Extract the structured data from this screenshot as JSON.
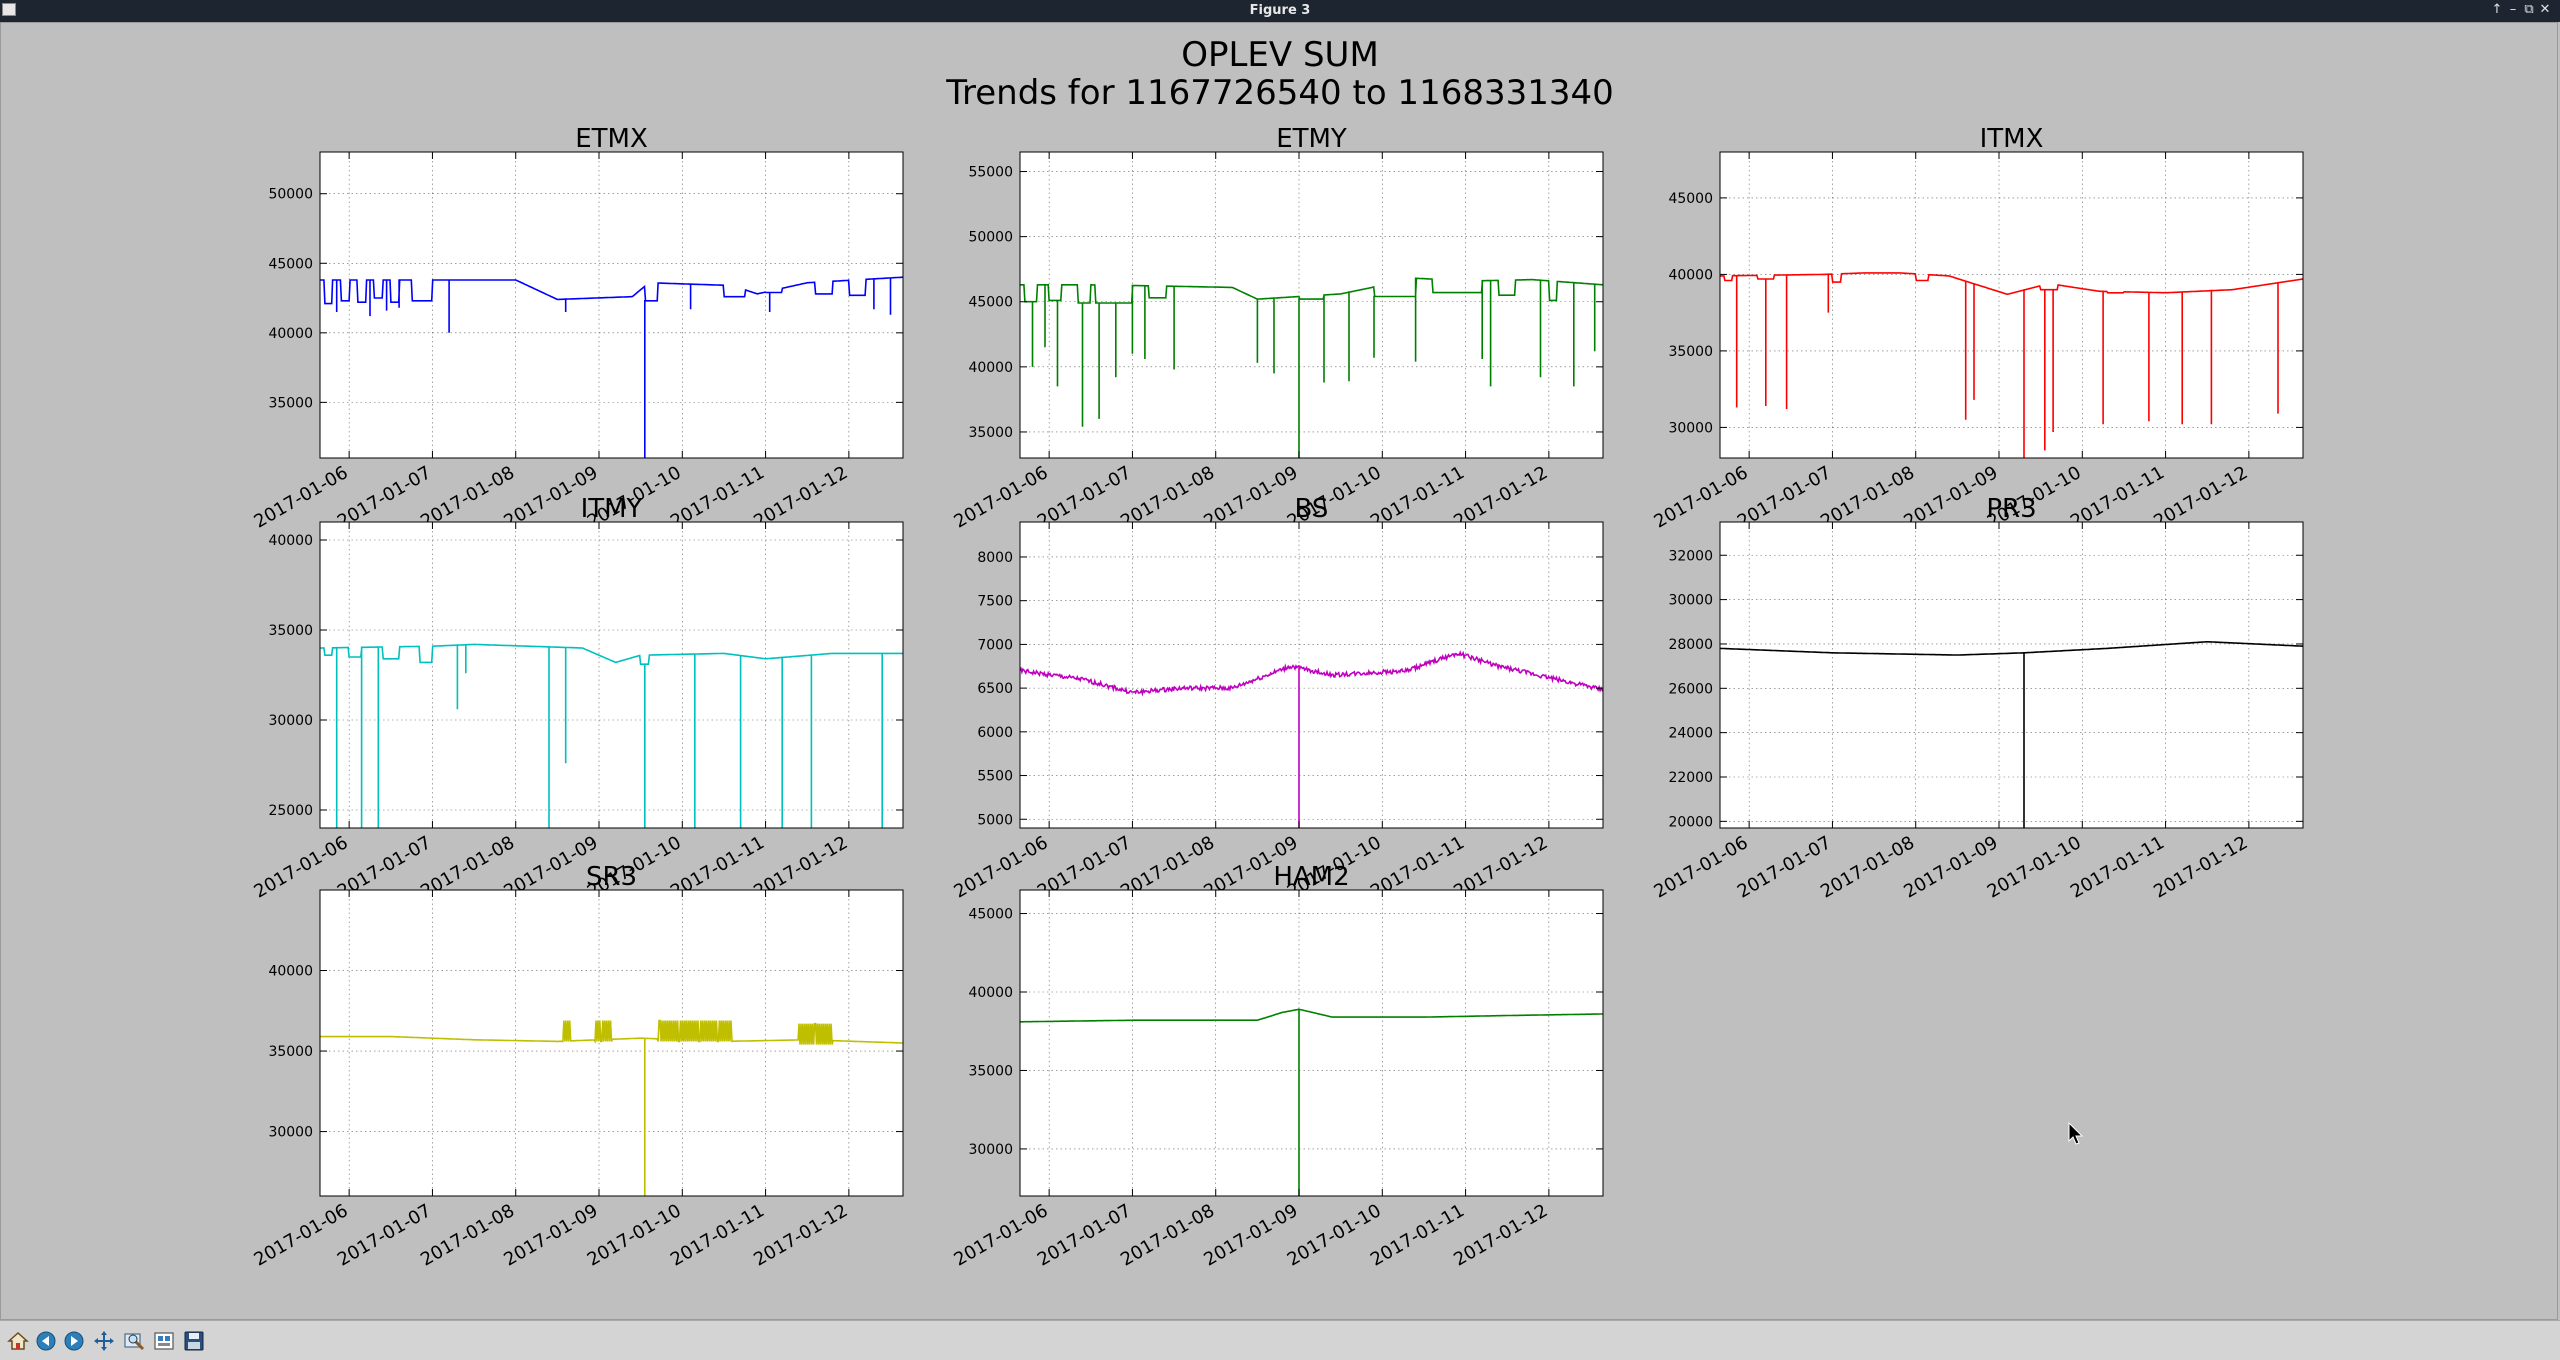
{
  "window": {
    "title": "Figure 3"
  },
  "figure": {
    "title_line1": "OPLEV SUM",
    "title_line2": "Trends for 1167726540 to 1168331340"
  },
  "toolbar": {
    "buttons": [
      {
        "name": "home-button",
        "icon": "home-icon"
      },
      {
        "name": "back-button",
        "icon": "back-arrow-icon"
      },
      {
        "name": "forward-button",
        "icon": "forward-arrow-icon"
      },
      {
        "name": "pan-button",
        "icon": "pan-move-icon"
      },
      {
        "name": "zoom-button",
        "icon": "zoom-rect-icon"
      },
      {
        "name": "configure-subplots-button",
        "icon": "subplots-config-icon"
      },
      {
        "name": "save-button",
        "icon": "save-disk-icon"
      }
    ]
  },
  "chart_data": [
    {
      "type": "line",
      "title": "ETMX",
      "color": "#0000ff",
      "dropdown_ends_at_axis": true,
      "x_ticks": [
        "2017-01-06",
        "2017-01-07",
        "2017-01-08",
        "2017-01-09",
        "2017-01-10",
        "2017-01-11",
        "2017-01-12"
      ],
      "xlim": [
        5.65,
        12.65
      ],
      "ylim": [
        31000,
        53000
      ],
      "y_ticks": [
        35000,
        40000,
        45000,
        50000
      ],
      "series": [
        {
          "base": [
            [
              5.65,
              43800
            ],
            [
              7.5,
              43800
            ],
            [
              8.0,
              43800
            ],
            [
              8.5,
              42400
            ],
            [
              9.4,
              42600
            ],
            [
              9.6,
              43600
            ],
            [
              10.6,
              43400
            ],
            [
              10.9,
              42800
            ],
            [
              11.5,
              43600
            ],
            [
              12.65,
              44000
            ]
          ],
          "steps": [
            [
              5.7,
              5.8,
              42100
            ],
            [
              5.9,
              6.0,
              42300
            ],
            [
              6.1,
              6.2,
              42200
            ],
            [
              6.3,
              6.4,
              42500
            ],
            [
              6.5,
              6.6,
              42200
            ],
            [
              6.75,
              7.0,
              42300
            ],
            [
              9.55,
              9.7,
              42300
            ],
            [
              10.5,
              10.75,
              42600
            ],
            [
              11.0,
              11.2,
              42900
            ],
            [
              11.6,
              11.8,
              42800
            ],
            [
              12.0,
              12.2,
              42700
            ]
          ],
          "spikes": [
            [
              5.85,
              41500
            ],
            [
              6.25,
              41200
            ],
            [
              6.45,
              41600
            ],
            [
              6.6,
              41800
            ],
            [
              7.2,
              40000
            ],
            [
              8.6,
              41500
            ],
            [
              9.55,
              31000
            ],
            [
              10.1,
              41700
            ],
            [
              11.05,
              41500
            ],
            [
              12.3,
              41700
            ],
            [
              12.5,
              41300
            ]
          ]
        }
      ]
    },
    {
      "type": "line",
      "title": "ETMY",
      "color": "#008000",
      "dropdown_ends_at_axis": true,
      "x_ticks": [
        "2017-01-06",
        "2017-01-07",
        "2017-01-08",
        "2017-01-09",
        "2017-01-10",
        "2017-01-11",
        "2017-01-12"
      ],
      "xlim": [
        5.65,
        12.65
      ],
      "ylim": [
        33000,
        56500
      ],
      "y_ticks": [
        35000,
        40000,
        45000,
        50000,
        55000
      ],
      "series": [
        {
          "base": [
            [
              5.65,
              46300
            ],
            [
              6.5,
              46300
            ],
            [
              7.4,
              46200
            ],
            [
              8.2,
              46100
            ],
            [
              8.5,
              45200
            ],
            [
              9.5,
              45600
            ],
            [
              10.4,
              46800
            ],
            [
              11.1,
              46600
            ],
            [
              11.8,
              46700
            ],
            [
              12.65,
              46300
            ]
          ],
          "steps": [
            [
              5.7,
              5.85,
              45000
            ],
            [
              6.0,
              6.15,
              45100
            ],
            [
              6.35,
              6.5,
              44900
            ],
            [
              6.55,
              7.0,
              44900
            ],
            [
              7.2,
              7.4,
              45300
            ],
            [
              9.0,
              9.3,
              45200
            ],
            [
              9.9,
              10.4,
              45400
            ],
            [
              10.6,
              11.2,
              45700
            ],
            [
              11.4,
              11.6,
              45500
            ],
            [
              12.0,
              12.1,
              45100
            ]
          ],
          "spikes": [
            [
              5.8,
              40000
            ],
            [
              5.95,
              41500
            ],
            [
              6.1,
              38500
            ],
            [
              6.4,
              35400
            ],
            [
              6.6,
              36000
            ],
            [
              6.8,
              39200
            ],
            [
              7.0,
              41000
            ],
            [
              7.15,
              40600
            ],
            [
              7.5,
              39800
            ],
            [
              8.5,
              40300
            ],
            [
              8.7,
              39500
            ],
            [
              9.0,
              33000
            ],
            [
              9.3,
              38800
            ],
            [
              9.6,
              38900
            ],
            [
              9.9,
              40700
            ],
            [
              10.4,
              40400
            ],
            [
              11.2,
              40600
            ],
            [
              11.3,
              38500
            ],
            [
              11.9,
              39200
            ],
            [
              12.3,
              38500
            ],
            [
              12.55,
              41200
            ]
          ]
        }
      ]
    },
    {
      "type": "line",
      "title": "ITMX",
      "color": "#ff0000",
      "dropdown_ends_at_axis": true,
      "x_ticks": [
        "2017-01-06",
        "2017-01-07",
        "2017-01-08",
        "2017-01-09",
        "2017-01-10",
        "2017-01-11",
        "2017-01-12"
      ],
      "xlim": [
        5.65,
        12.65
      ],
      "ylim": [
        28000,
        48000
      ],
      "y_ticks": [
        30000,
        35000,
        40000,
        45000
      ],
      "series": [
        {
          "base": [
            [
              5.65,
              39900
            ],
            [
              6.9,
              40000
            ],
            [
              7.4,
              40100
            ],
            [
              7.8,
              40100
            ],
            [
              8.4,
              39900
            ],
            [
              9.1,
              38700
            ],
            [
              9.6,
              39400
            ],
            [
              10.2,
              38900
            ],
            [
              11.0,
              38800
            ],
            [
              11.8,
              39000
            ],
            [
              12.65,
              39700
            ]
          ],
          "steps": [
            [
              5.7,
              5.8,
              39600
            ],
            [
              6.1,
              6.3,
              39700
            ],
            [
              7.0,
              7.1,
              39500
            ],
            [
              8.0,
              8.15,
              39600
            ],
            [
              9.5,
              9.7,
              39000
            ],
            [
              10.3,
              10.5,
              38800
            ]
          ],
          "spikes": [
            [
              5.85,
              31300
            ],
            [
              6.2,
              31400
            ],
            [
              6.45,
              31200
            ],
            [
              6.95,
              37500
            ],
            [
              8.6,
              30500
            ],
            [
              8.7,
              31800
            ],
            [
              9.3,
              28000
            ],
            [
              9.55,
              28500
            ],
            [
              9.65,
              29700
            ],
            [
              10.25,
              30200
            ],
            [
              10.8,
              30400
            ],
            [
              11.2,
              30200
            ],
            [
              11.55,
              30200
            ],
            [
              12.35,
              30900
            ]
          ]
        }
      ]
    },
    {
      "type": "line",
      "title": "ITMY",
      "color": "#00bfbf",
      "dropdown_ends_at_axis": true,
      "x_ticks": [
        "2017-01-06",
        "2017-01-07",
        "2017-01-08",
        "2017-01-09",
        "2017-01-10",
        "2017-01-11",
        "2017-01-12"
      ],
      "xlim": [
        5.65,
        12.65
      ],
      "ylim": [
        24000,
        41000
      ],
      "y_ticks": [
        25000,
        30000,
        35000,
        40000
      ],
      "series": [
        {
          "base": [
            [
              5.65,
              34000
            ],
            [
              7.0,
              34100
            ],
            [
              7.5,
              34200
            ],
            [
              8.8,
              34000
            ],
            [
              9.2,
              33200
            ],
            [
              9.5,
              33600
            ],
            [
              10.5,
              33700
            ],
            [
              11.0,
              33400
            ],
            [
              11.8,
              33700
            ],
            [
              12.65,
              33700
            ]
          ],
          "steps": [
            [
              5.7,
              5.8,
              33600
            ],
            [
              6.0,
              6.15,
              33500
            ],
            [
              6.4,
              6.6,
              33400
            ],
            [
              6.85,
              7.0,
              33200
            ],
            [
              9.5,
              9.6,
              33100
            ]
          ],
          "spikes": [
            [
              5.85,
              24000
            ],
            [
              6.15,
              24000
            ],
            [
              6.35,
              24000
            ],
            [
              7.4,
              32600
            ],
            [
              7.3,
              30600
            ],
            [
              8.4,
              24000
            ],
            [
              8.6,
              27600
            ],
            [
              9.55,
              24000
            ],
            [
              10.15,
              24000
            ],
            [
              10.7,
              24000
            ],
            [
              11.2,
              24000
            ],
            [
              11.55,
              24000
            ],
            [
              12.4,
              24000
            ]
          ]
        }
      ]
    },
    {
      "type": "line",
      "title": "BS",
      "color": "#bf00bf",
      "noise": 25,
      "dropdown_ends_at_axis": true,
      "x_ticks": [
        "2017-01-06",
        "2017-01-07",
        "2017-01-08",
        "2017-01-09",
        "2017-01-10",
        "2017-01-11",
        "2017-01-12"
      ],
      "xlim": [
        5.65,
        12.65
      ],
      "ylim": [
        4900,
        8400
      ],
      "y_ticks": [
        5000,
        5500,
        6000,
        6500,
        7000,
        7500,
        8000
      ],
      "series": [
        {
          "base": [
            [
              5.65,
              6700
            ],
            [
              6.4,
              6600
            ],
            [
              7.0,
              6450
            ],
            [
              7.6,
              6500
            ],
            [
              8.2,
              6500
            ],
            [
              8.9,
              6750
            ],
            [
              9.4,
              6650
            ],
            [
              10.3,
              6700
            ],
            [
              10.9,
              6900
            ],
            [
              11.4,
              6750
            ],
            [
              12.1,
              6600
            ],
            [
              12.65,
              6480
            ]
          ],
          "steps": [],
          "spikes": [
            [
              9.0,
              4900
            ]
          ]
        }
      ]
    },
    {
      "type": "line",
      "title": "PR3",
      "color": "#000000",
      "dropdown_ends_at_axis": true,
      "x_ticks": [
        "2017-01-06",
        "2017-01-07",
        "2017-01-08",
        "2017-01-09",
        "2017-01-10",
        "2017-01-11",
        "2017-01-12"
      ],
      "xlim": [
        5.65,
        12.65
      ],
      "ylim": [
        19700,
        33500
      ],
      "y_ticks": [
        20000,
        22000,
        24000,
        26000,
        28000,
        30000,
        32000
      ],
      "series": [
        {
          "base": [
            [
              5.65,
              27800
            ],
            [
              7.0,
              27600
            ],
            [
              8.5,
              27500
            ],
            [
              9.3,
              27600
            ],
            [
              10.3,
              27800
            ],
            [
              11.5,
              28100
            ],
            [
              12.65,
              27900
            ]
          ],
          "steps": [],
          "spikes": [
            [
              9.3,
              19700
            ]
          ]
        }
      ]
    },
    {
      "type": "line",
      "title": "SR3",
      "color": "#bfbf00",
      "dropdown_ends_at_axis": true,
      "x_ticks": [
        "2017-01-06",
        "2017-01-07",
        "2017-01-08",
        "2017-01-09",
        "2017-01-10",
        "2017-01-11",
        "2017-01-12"
      ],
      "xlim": [
        5.65,
        12.65
      ],
      "ylim": [
        26000,
        45000
      ],
      "y_ticks": [
        30000,
        35000,
        40000
      ],
      "series": [
        {
          "base": [
            [
              5.65,
              35900
            ],
            [
              6.5,
              35900
            ],
            [
              7.5,
              35700
            ],
            [
              8.5,
              35600
            ],
            [
              9.5,
              35800
            ],
            [
              10.5,
              35600
            ],
            [
              11.5,
              35700
            ],
            [
              12.65,
              35500
            ]
          ],
          "steps": [
            [
              8.55,
              8.65,
              36900
            ],
            [
              8.95,
              9.15,
              36900
            ],
            [
              9.7,
              10.6,
              36900
            ],
            [
              11.4,
              11.8,
              36700
            ]
          ],
          "spikes": [
            [
              9.55,
              26000
            ]
          ]
        }
      ]
    },
    {
      "type": "line",
      "title": "HAM2",
      "color": "#008000",
      "dropdown_ends_at_axis": true,
      "x_ticks": [
        "2017-01-06",
        "2017-01-07",
        "2017-01-08",
        "2017-01-09",
        "2017-01-10",
        "2017-01-11",
        "2017-01-12"
      ],
      "xlim": [
        5.65,
        12.65
      ],
      "ylim": [
        27000,
        46500
      ],
      "y_ticks": [
        30000,
        35000,
        40000,
        45000
      ],
      "series": [
        {
          "base": [
            [
              5.65,
              38100
            ],
            [
              7.0,
              38200
            ],
            [
              8.5,
              38200
            ],
            [
              8.8,
              38700
            ],
            [
              9.0,
              38900
            ],
            [
              9.4,
              38400
            ],
            [
              10.5,
              38400
            ],
            [
              11.5,
              38500
            ],
            [
              12.65,
              38600
            ]
          ],
          "steps": [],
          "spikes": [
            [
              9.0,
              27000
            ]
          ]
        }
      ]
    }
  ]
}
